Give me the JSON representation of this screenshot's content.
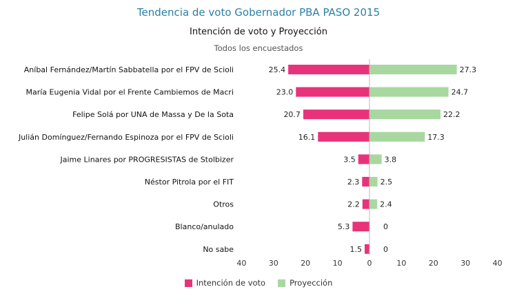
{
  "chart_data": {
    "type": "bar",
    "title": "Tendencia de voto Gobernador PBA PASO 2015",
    "subtitle": "Intención de voto y Proyección",
    "subsubtitle": "Todos los encuestados",
    "categories": [
      "Aníbal Fernández/Martín Sabbatella por el FPV de Scioli",
      "María Eugenia Vidal por el Frente Cambiemos de Macri",
      "Felipe Solá por UNA de Massa y De la Sota",
      "Julián Domínguez/Fernando Espinoza por el FPV de Scioli",
      "Jaime Linares por PROGRESISTAS de Stolbizer",
      "Néstor Pitrola por el FIT",
      "Otros",
      "Blanco/anulado",
      "No sabe"
    ],
    "series": [
      {
        "name": "Intención de voto",
        "color": "#e8337a",
        "values": [
          25.4,
          23.0,
          20.7,
          16.1,
          3.5,
          2.3,
          2.2,
          5.3,
          1.5
        ],
        "labels": [
          "25.4",
          "23.0",
          "20.7",
          "16.1",
          "3.5",
          "2.3",
          "2.2",
          "5.3",
          "1.5"
        ]
      },
      {
        "name": "Proyección",
        "color": "#a8d8a0",
        "values": [
          27.3,
          24.7,
          22.2,
          17.3,
          3.8,
          2.5,
          2.4,
          0,
          0
        ],
        "labels": [
          "27.3",
          "24.7",
          "22.2",
          "17.3",
          "3.8",
          "2.5",
          "2.4",
          "0",
          "0"
        ]
      }
    ],
    "xlim": [
      -40,
      40
    ],
    "ticks": [
      -40,
      -30,
      -20,
      -10,
      0,
      10,
      20,
      30,
      40
    ],
    "tick_labels": [
      "40",
      "30",
      "20",
      "10",
      "0",
      "10",
      "20",
      "30",
      "40"
    ],
    "grid": false,
    "legend_position": "bottom"
  }
}
